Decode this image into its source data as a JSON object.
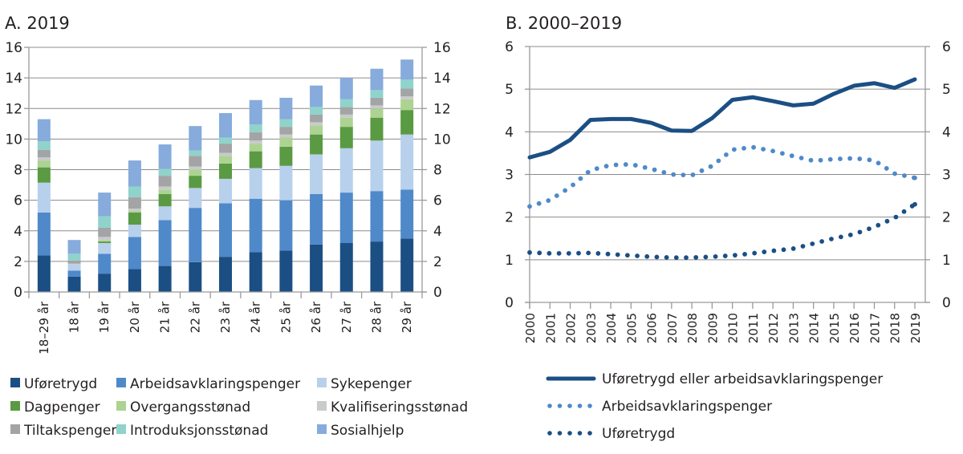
{
  "chart_data": [
    {
      "type": "bar",
      "stacked": true,
      "title": "A. 2019",
      "xlabel": "",
      "ylabel": "",
      "ylim": [
        0,
        16
      ],
      "yticks": [
        0,
        2,
        4,
        6,
        8,
        10,
        12,
        14,
        16
      ],
      "ytick_labels": [
        "0",
        "2",
        "4",
        "6",
        "8",
        "10",
        "12",
        "14",
        "16"
      ],
      "grid": true,
      "dual_y_axis": true,
      "legend_position": "bottom",
      "categories": [
        "18–29 år",
        "18 år",
        "19 år",
        "20 år",
        "21 år",
        "22 år",
        "23 år",
        "24 år",
        "25 år",
        "26 år",
        "27 år",
        "28 år",
        "29 år"
      ],
      "series": [
        {
          "name": "Uføretrygd",
          "color": "#1b4f84",
          "values": [
            2.4,
            1.0,
            1.2,
            1.5,
            1.7,
            1.95,
            2.3,
            2.6,
            2.7,
            3.1,
            3.2,
            3.3,
            3.5
          ]
        },
        {
          "name": "Arbeidsavklaringspenger",
          "color": "#4f89c9",
          "values": [
            2.8,
            0.4,
            1.3,
            2.1,
            3.0,
            3.55,
            3.5,
            3.5,
            3.3,
            3.3,
            3.3,
            3.3,
            3.2
          ]
        },
        {
          "name": "Sykepenger",
          "color": "#b7d0ec",
          "values": [
            1.95,
            0.4,
            0.7,
            0.8,
            0.9,
            1.3,
            1.6,
            2.0,
            2.25,
            2.6,
            2.9,
            3.3,
            3.6
          ]
        },
        {
          "name": "Dagpenger",
          "color": "#5a9a43",
          "values": [
            1.0,
            0.0,
            0.1,
            0.8,
            0.8,
            0.8,
            1.0,
            1.1,
            1.25,
            1.3,
            1.4,
            1.5,
            1.6
          ]
        },
        {
          "name": "Overgangsstønad",
          "color": "#acd391",
          "values": [
            0.45,
            0.0,
            0.1,
            0.1,
            0.3,
            0.4,
            0.5,
            0.5,
            0.6,
            0.6,
            0.6,
            0.6,
            0.7
          ]
        },
        {
          "name": "Kvalifiseringsstønad",
          "color": "#c9cacc",
          "values": [
            0.2,
            0.05,
            0.2,
            0.15,
            0.2,
            0.2,
            0.2,
            0.2,
            0.2,
            0.2,
            0.2,
            0.2,
            0.2
          ]
        },
        {
          "name": "Tiltakspenger",
          "color": "#a3a4a6",
          "values": [
            0.5,
            0.2,
            0.6,
            0.75,
            0.7,
            0.7,
            0.6,
            0.55,
            0.5,
            0.5,
            0.5,
            0.5,
            0.5
          ]
        },
        {
          "name": "Introduksjonsstønad",
          "color": "#8fd3cb",
          "values": [
            0.55,
            0.45,
            0.75,
            0.7,
            0.45,
            0.35,
            0.4,
            0.5,
            0.5,
            0.5,
            0.5,
            0.5,
            0.6
          ]
        },
        {
          "name": "Sosialhjelp",
          "color": "#86abdc",
          "values": [
            1.45,
            0.9,
            1.55,
            1.7,
            1.6,
            1.6,
            1.6,
            1.6,
            1.4,
            1.4,
            1.4,
            1.4,
            1.3
          ]
        }
      ]
    },
    {
      "type": "line",
      "title": "B. 2000–2019",
      "xlabel": "",
      "ylabel": "",
      "ylim": [
        0,
        6
      ],
      "yticks": [
        0,
        1,
        2,
        3,
        4,
        5,
        6
      ],
      "ytick_labels": [
        "0",
        "1",
        "2",
        "3",
        "4",
        "5",
        "6"
      ],
      "grid": true,
      "dual_y_axis": true,
      "legend_position": "bottom",
      "x": [
        "2000",
        "2001",
        "2002",
        "2003",
        "2004",
        "2005",
        "2006",
        "2007",
        "2008",
        "2009",
        "2010",
        "2011",
        "2012",
        "2013",
        "2014",
        "2015",
        "2016",
        "2017",
        "2018",
        "2019"
      ],
      "series": [
        {
          "name": "Uføretrygd eller arbeidsavklaringspenger",
          "style": "solid",
          "color": "#1b4f84",
          "values": [
            3.4,
            3.53,
            3.81,
            4.28,
            4.3,
            4.3,
            4.21,
            4.03,
            4.02,
            4.32,
            4.75,
            4.81,
            4.72,
            4.62,
            4.66,
            4.89,
            5.08,
            5.14,
            5.03,
            5.23
          ]
        },
        {
          "name": "Arbeidsavklaringspenger",
          "style": "dotted",
          "color": "#4f89c9",
          "values": [
            2.25,
            2.4,
            2.7,
            3.1,
            3.22,
            3.24,
            3.13,
            3.0,
            2.98,
            3.2,
            3.58,
            3.64,
            3.55,
            3.43,
            3.32,
            3.36,
            3.38,
            3.33,
            3.02,
            2.92
          ]
        },
        {
          "name": "Uføretrygd",
          "style": "dotted",
          "color": "#1b4f84",
          "values": [
            1.17,
            1.15,
            1.15,
            1.16,
            1.13,
            1.1,
            1.07,
            1.05,
            1.05,
            1.07,
            1.1,
            1.15,
            1.21,
            1.26,
            1.38,
            1.5,
            1.6,
            1.77,
            1.98,
            2.3
          ]
        }
      ]
    }
  ]
}
